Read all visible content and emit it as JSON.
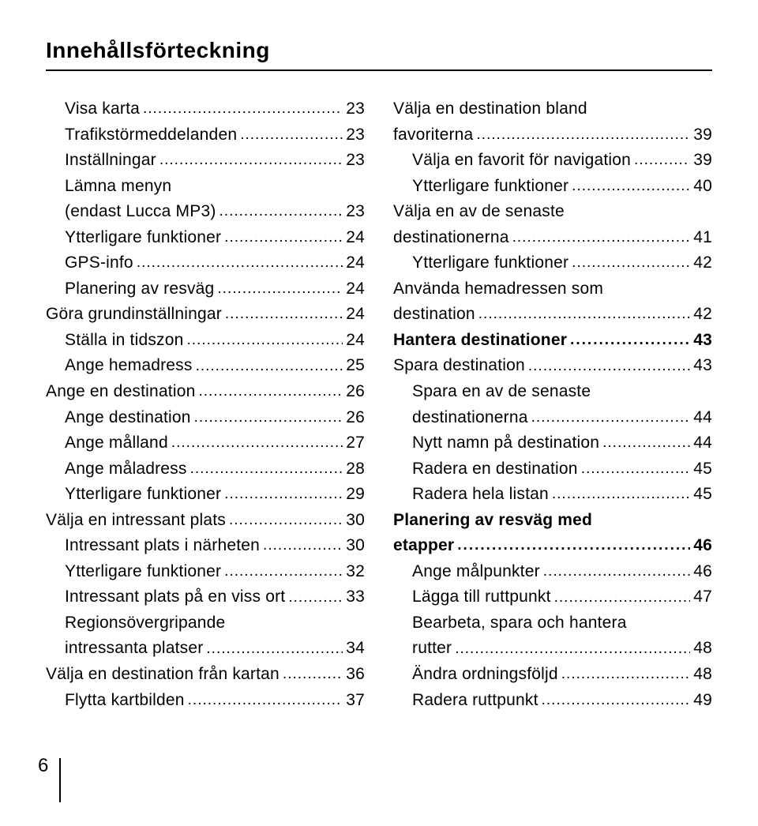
{
  "title": "Innehållsförteckning",
  "page_number": "6",
  "left": [
    {
      "indent": 1,
      "bold": false,
      "label": "Visa karta",
      "page": "23"
    },
    {
      "indent": 1,
      "bold": false,
      "label": "Trafikstörmeddelanden",
      "page": "23"
    },
    {
      "indent": 1,
      "bold": false,
      "label": "Inställningar",
      "page": "23"
    },
    {
      "indent": 1,
      "bold": false,
      "label_pre": "Lämna menyn",
      "label": "(endast Lucca MP3)",
      "page": "23"
    },
    {
      "indent": 1,
      "bold": false,
      "label": "Ytterligare funktioner",
      "page": "24"
    },
    {
      "indent": 1,
      "bold": false,
      "label": "GPS-info",
      "page": "24"
    },
    {
      "indent": 1,
      "bold": false,
      "label": "Planering av resväg",
      "page": "24"
    },
    {
      "indent": 0,
      "bold": false,
      "label": "Göra grundinställningar",
      "page": "24"
    },
    {
      "indent": 1,
      "bold": false,
      "label": "Ställa in tidszon",
      "page": "24"
    },
    {
      "indent": 1,
      "bold": false,
      "label": "Ange hemadress",
      "page": "25"
    },
    {
      "indent": 0,
      "bold": false,
      "label": "Ange en destination",
      "page": "26"
    },
    {
      "indent": 1,
      "bold": false,
      "label": "Ange destination",
      "page": "26"
    },
    {
      "indent": 1,
      "bold": false,
      "label": "Ange målland",
      "page": "27"
    },
    {
      "indent": 1,
      "bold": false,
      "label": "Ange måladress",
      "page": "28"
    },
    {
      "indent": 1,
      "bold": false,
      "label": "Ytterligare funktioner",
      "page": "29"
    },
    {
      "indent": 0,
      "bold": false,
      "label": "Välja en intressant plats",
      "page": "30"
    },
    {
      "indent": 1,
      "bold": false,
      "label": "Intressant plats i närheten",
      "page": "30"
    },
    {
      "indent": 1,
      "bold": false,
      "label": "Ytterligare funktioner",
      "page": "32"
    },
    {
      "indent": 1,
      "bold": false,
      "label": "Intressant plats på en viss ort",
      "page": "33"
    },
    {
      "indent": 1,
      "bold": false,
      "label_pre": "Regionsövergripande",
      "label": "intressanta platser",
      "page": "34"
    },
    {
      "indent": 0,
      "bold": false,
      "label": "Välja en destination från kartan",
      "page": "36"
    },
    {
      "indent": 1,
      "bold": false,
      "label": "Flytta kartbilden",
      "page": "37"
    }
  ],
  "right": [
    {
      "indent": 0,
      "bold": false,
      "label_pre": "Välja en destination bland",
      "label": "favoriterna",
      "page": "39"
    },
    {
      "indent": 1,
      "bold": false,
      "label": "Välja en favorit för navigation",
      "page": "39"
    },
    {
      "indent": 1,
      "bold": false,
      "label": "Ytterligare funktioner",
      "page": "40"
    },
    {
      "indent": 0,
      "bold": false,
      "label_pre": "Välja en av de senaste",
      "label": "destinationerna",
      "page": "41"
    },
    {
      "indent": 1,
      "bold": false,
      "label": "Ytterligare funktioner",
      "page": "42"
    },
    {
      "indent": 0,
      "bold": false,
      "label_pre": "Använda hemadressen som",
      "label": "destination",
      "page": "42"
    },
    {
      "indent": 0,
      "bold": true,
      "label": "Hantera destinationer",
      "page": "43"
    },
    {
      "indent": 0,
      "bold": false,
      "label": "Spara destination",
      "page": "43"
    },
    {
      "indent": 1,
      "bold": false,
      "label_pre": "Spara en av de senaste",
      "label": "destinationerna",
      "page": "44"
    },
    {
      "indent": 1,
      "bold": false,
      "label": "Nytt namn på destination",
      "page": "44"
    },
    {
      "indent": 1,
      "bold": false,
      "label": "Radera en destination",
      "page": "45"
    },
    {
      "indent": 1,
      "bold": false,
      "label": "Radera hela listan",
      "page": "45"
    },
    {
      "indent": 0,
      "bold": true,
      "label_pre": "Planering av resväg med",
      "label": "etapper",
      "page": "46"
    },
    {
      "indent": 1,
      "bold": false,
      "label": "Ange målpunkter",
      "page": "46"
    },
    {
      "indent": 1,
      "bold": false,
      "label": "Lägga till ruttpunkt",
      "page": "47"
    },
    {
      "indent": 1,
      "bold": false,
      "label_pre": "Bearbeta, spara och hantera",
      "label": "rutter",
      "page": "48"
    },
    {
      "indent": 1,
      "bold": false,
      "label": "Ändra ordningsföljd",
      "page": "48"
    },
    {
      "indent": 1,
      "bold": false,
      "label": "Radera ruttpunkt",
      "page": "49"
    }
  ]
}
